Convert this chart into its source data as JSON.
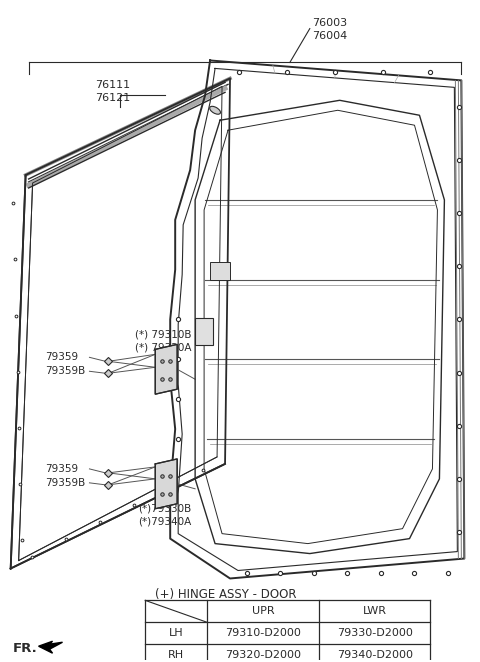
{
  "bg_color": "#ffffff",
  "line_color": "#2a2a2a",
  "label_76003": "76003",
  "label_76004": "76004",
  "label_76111": "76111",
  "label_76121": "76121",
  "label_79310B": "(*) 79310B",
  "label_79320A": "(*) 79320A",
  "label_79330B": "(*)79330B",
  "label_79340A": "(*)79340A",
  "label_79359_1": "79359",
  "label_79359B_1": "79359B",
  "label_79359_2": "79359",
  "label_79359B_2": "79359B",
  "table_title": "(+) HINGE ASSY - DOOR",
  "table_header": [
    "",
    "UPR",
    "LWR"
  ],
  "table_rows": [
    [
      "LH",
      "79310-D2000",
      "79330-D2000"
    ],
    [
      "RH",
      "79320-D2000",
      "79340-D2000"
    ]
  ],
  "fr_text": "FR."
}
